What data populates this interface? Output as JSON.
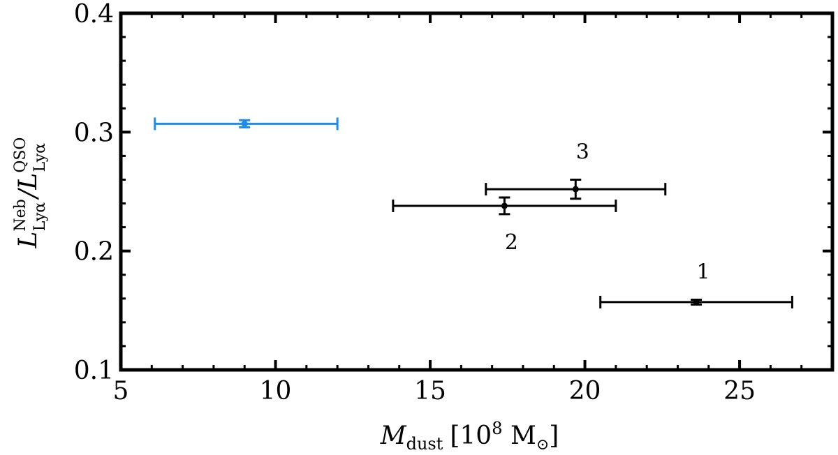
{
  "chart_data": {
    "type": "scatter",
    "xlabel": {
      "symbol": "M",
      "sub": "dust",
      "unit_open": "[10",
      "unit_exp": "8",
      "unit_close": " M",
      "unit_sub": "⊙",
      "bracket_end": "]"
    },
    "ylabel": {
      "num_symbol": "L",
      "num_sup": "Neb",
      "num_sub": "Lyα",
      "slash": "/",
      "den_symbol": "L",
      "den_sup": "QSO",
      "den_sub": "Lyα"
    },
    "xlim": [
      5,
      28
    ],
    "ylim": [
      0.1,
      0.4
    ],
    "xticks": [
      5,
      10,
      15,
      20,
      25
    ],
    "xtick_labels": [
      "5",
      "10",
      "15",
      "20",
      "25"
    ],
    "yticks": [
      0.1,
      0.2,
      0.3,
      0.4
    ],
    "ytick_labels": [
      "0.1",
      "0.2",
      "0.3",
      "0.4"
    ],
    "grid": false,
    "points": [
      {
        "label": "",
        "x": 9.0,
        "y": 0.307,
        "xerr": [
          6.1,
          12.0
        ],
        "yerr": [
          0.304,
          0.31
        ],
        "color": "#1f8ceb",
        "label_pos": "none"
      },
      {
        "label": "1",
        "x": 23.6,
        "y": 0.157,
        "xerr": [
          20.5,
          26.7
        ],
        "yerr": [
          0.155,
          0.159
        ],
        "color": "#000000",
        "label_pos": "above"
      },
      {
        "label": "2",
        "x": 17.4,
        "y": 0.238,
        "xerr": [
          13.8,
          21.0
        ],
        "yerr": [
          0.231,
          0.245
        ],
        "color": "#000000",
        "label_pos": "below"
      },
      {
        "label": "3",
        "x": 19.7,
        "y": 0.252,
        "xerr": [
          16.8,
          22.6
        ],
        "yerr": [
          0.244,
          0.26
        ],
        "color": "#000000",
        "label_pos": "above"
      }
    ]
  }
}
